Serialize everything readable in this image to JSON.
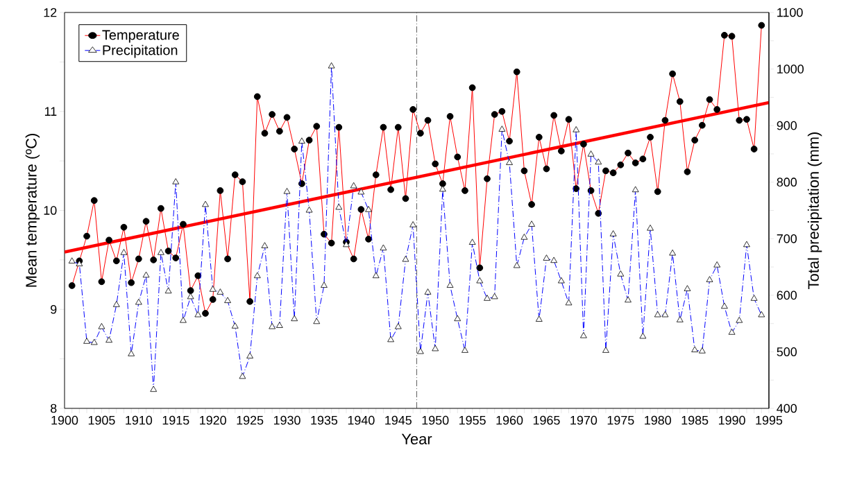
{
  "chart_data": {
    "type": "line",
    "xlabel": "Year",
    "ylabel": "Mean temperature (ºC)",
    "y2label": "Total precipitation (mm)",
    "x": [
      1901,
      1902,
      1903,
      1904,
      1905,
      1906,
      1907,
      1908,
      1909,
      1910,
      1911,
      1912,
      1913,
      1914,
      1915,
      1916,
      1917,
      1918,
      1919,
      1920,
      1921,
      1922,
      1923,
      1924,
      1925,
      1926,
      1927,
      1928,
      1929,
      1930,
      1931,
      1932,
      1933,
      1934,
      1935,
      1936,
      1937,
      1938,
      1939,
      1940,
      1941,
      1942,
      1943,
      1944,
      1945,
      1946,
      1947,
      1948,
      1949,
      1950,
      1951,
      1952,
      1953,
      1954,
      1955,
      1956,
      1957,
      1958,
      1959,
      1960,
      1961,
      1962,
      1963,
      1964,
      1965,
      1966,
      1967,
      1968,
      1969,
      1970,
      1971,
      1972,
      1973,
      1974,
      1975,
      1976,
      1977,
      1978,
      1979,
      1980,
      1981,
      1982,
      1983,
      1984,
      1985,
      1986,
      1987,
      1988,
      1989,
      1990,
      1991,
      1992,
      1993,
      1994
    ],
    "series": [
      {
        "name": "Temperature",
        "color": "#ff0000",
        "marker": "circle",
        "line_style": "solid",
        "values": [
          9.24,
          9.49,
          9.74,
          10.1,
          9.28,
          9.7,
          9.49,
          9.83,
          9.27,
          9.51,
          9.89,
          9.5,
          10.02,
          9.59,
          9.52,
          9.86,
          9.19,
          9.34,
          8.96,
          9.1,
          10.2,
          9.51,
          10.36,
          10.29,
          9.08,
          11.15,
          10.78,
          10.97,
          10.8,
          10.94,
          10.62,
          10.27,
          10.71,
          10.85,
          9.76,
          9.67,
          10.84,
          9.68,
          9.51,
          10.01,
          9.71,
          10.36,
          10.84,
          10.21,
          10.84,
          10.12,
          11.02,
          10.78,
          10.91,
          10.47,
          10.27,
          10.95,
          10.54,
          10.2,
          11.24,
          9.42,
          10.32,
          10.97,
          11.0,
          10.7,
          11.4,
          10.4,
          10.06,
          10.74,
          10.42,
          10.96,
          10.6,
          10.92,
          10.22,
          10.67,
          10.2,
          9.97,
          10.4,
          10.38,
          10.46,
          10.58,
          10.48,
          10.52,
          10.74,
          10.19,
          10.91,
          11.38,
          11.1,
          10.39,
          10.71,
          10.86,
          11.12,
          11.02,
          11.77,
          11.76,
          10.91,
          10.92,
          10.62,
          11.87
        ]
      },
      {
        "type": "line",
        "color": "#ff0000",
        "marker": "none",
        "line_style": "solid",
        "x": [
          1900,
          1995
        ],
        "values": [
          9.58,
          11.09
        ]
      },
      {
        "name": "Precipitation",
        "color": "#0000ff",
        "marker": "triangle",
        "line_style": "dashed",
        "axis": "y2",
        "values": [
          660,
          655,
          518,
          516,
          544,
          520,
          583,
          675,
          496,
          587,
          635,
          433,
          675,
          607,
          800,
          555,
          597,
          565,
          760,
          610,
          605,
          590,
          545,
          456,
          492,
          634,
          687,
          544,
          546,
          783,
          558,
          872,
          750,
          553,
          617,
          1005,
          755,
          689,
          793,
          782,
          751,
          634,
          683,
          521,
          544,
          663,
          724,
          500,
          605,
          505,
          787,
          617,
          558,
          502,
          693,
          625,
          594,
          597,
          893,
          834,
          652,
          702,
          725,
          557,
          665,
          661,
          625,
          586,
          892,
          528,
          849,
          835,
          502,
          708,
          637,
          591,
          786,
          527,
          718,
          565,
          565,
          674,
          556,
          611,
          503,
          501,
          627,
          653,
          580,
          534,
          555,
          689,
          594,
          565
        ]
      }
    ],
    "xlim": [
      1900,
      1995
    ],
    "xticks": [
      1900,
      {
        "value": 1901,
        "label": null
      },
      {
        "value": 1902,
        "label": null
      },
      {
        "value": 1903,
        "label": null
      },
      {
        "value": 1904,
        "label": null
      },
      1905,
      {
        "value": 1906,
        "label": null
      },
      {
        "value": 1907,
        "label": null
      },
      {
        "value": 1908,
        "label": null
      },
      {
        "value": 1909,
        "label": null
      },
      1910,
      {
        "value": 1911,
        "label": null
      },
      {
        "value": 1912,
        "label": null
      },
      {
        "value": 1913,
        "label": null
      },
      {
        "value": 1914,
        "label": null
      },
      1915,
      {
        "value": 1916,
        "label": null
      },
      {
        "value": 1917,
        "label": null
      },
      {
        "value": 1918,
        "label": null
      },
      {
        "value": 1919,
        "label": null
      },
      1920,
      {
        "value": 1921,
        "label": null
      },
      {
        "value": 1922,
        "label": null
      },
      {
        "value": 1923,
        "label": null
      },
      {
        "value": 1924,
        "label": null
      },
      1925,
      {
        "value": 1926,
        "label": null
      },
      {
        "value": 1927,
        "label": null
      },
      {
        "value": 1928,
        "label": null
      },
      {
        "value": 1929,
        "label": null
      },
      1930,
      {
        "value": 1931,
        "label": null
      },
      {
        "value": 1932,
        "label": null
      },
      {
        "value": 1933,
        "label": null
      },
      {
        "value": 1934,
        "label": null
      },
      1935,
      {
        "value": 1936,
        "label": null
      },
      {
        "value": 1937,
        "label": null
      },
      {
        "value": 1938,
        "label": null
      },
      {
        "value": 1939,
        "label": null
      },
      1940,
      {
        "value": 1941,
        "label": null
      },
      {
        "value": 1942,
        "label": null
      },
      {
        "value": 1943,
        "label": null
      },
      {
        "value": 1944,
        "label": null
      },
      1945,
      {
        "value": 1946,
        "label": null
      },
      {
        "value": 1947,
        "label": null
      },
      {
        "value": 1948,
        "label": null
      },
      {
        "value": 1949,
        "label": null
      },
      1950,
      {
        "value": 1951,
        "label": null
      },
      {
        "value": 1952,
        "label": null
      },
      {
        "value": 1953,
        "label": null
      },
      {
        "value": 1954,
        "label": null
      },
      1955,
      {
        "value": 1956,
        "label": null
      },
      {
        "value": 1957,
        "label": null
      },
      {
        "value": 1958,
        "label": null
      },
      {
        "value": 1959,
        "label": null
      },
      1960,
      {
        "value": 1961,
        "label": null
      },
      {
        "value": 1962,
        "label": null
      },
      {
        "value": 1963,
        "label": null
      },
      {
        "value": 1964,
        "label": null
      },
      1965,
      {
        "value": 1966,
        "label": null
      },
      {
        "value": 1967,
        "label": null
      },
      {
        "value": 1968,
        "label": null
      },
      {
        "value": 1969,
        "label": null
      },
      1970,
      {
        "value": 1971,
        "label": null
      },
      {
        "value": 1972,
        "label": null
      },
      {
        "value": 1973,
        "label": null
      },
      {
        "value": 1974,
        "label": null
      },
      1975,
      {
        "value": 1976,
        "label": null
      },
      {
        "value": 1977,
        "label": null
      },
      {
        "value": 1978,
        "label": null
      },
      {
        "value": 1979,
        "label": null
      },
      1980,
      {
        "value": 1981,
        "label": null
      },
      {
        "value": 1982,
        "label": null
      },
      {
        "value": 1983,
        "label": null
      },
      {
        "value": 1984,
        "label": null
      },
      1985,
      {
        "value": 1986,
        "label": null
      },
      {
        "value": 1987,
        "label": null
      },
      {
        "value": 1988,
        "label": null
      },
      {
        "value": 1989,
        "label": null
      },
      1990,
      {
        "value": 1991,
        "label": null
      },
      {
        "value": 1992,
        "label": null
      },
      {
        "value": 1993,
        "label": null
      },
      {
        "value": 1994,
        "label": null
      },
      1995
    ],
    "ylim": [
      8,
      12
    ],
    "yticks": [
      8,
      {
        "value": 8.5,
        "label": null
      },
      9,
      {
        "value": 9.5,
        "label": null
      },
      10,
      {
        "value": 10.5,
        "label": null
      },
      11,
      {
        "value": 11.5,
        "label": null
      },
      12
    ],
    "y2lim": [
      400,
      1100
    ],
    "y2ticks": [
      400,
      {
        "value": 450,
        "label": null
      },
      500,
      {
        "value": 550,
        "label": null
      },
      600,
      {
        "value": 650,
        "label": null
      },
      700,
      {
        "value": 750,
        "label": null
      },
      800,
      {
        "value": 850,
        "label": null
      },
      900,
      {
        "value": 950,
        "label": null
      },
      1000,
      {
        "value": 1050,
        "label": null
      },
      1100
    ],
    "ref_lines": [
      {
        "axis": "x",
        "value": 1947.5,
        "color": "#333333",
        "line_style": "dashed"
      }
    ],
    "grid": false,
    "legend": "top left"
  }
}
